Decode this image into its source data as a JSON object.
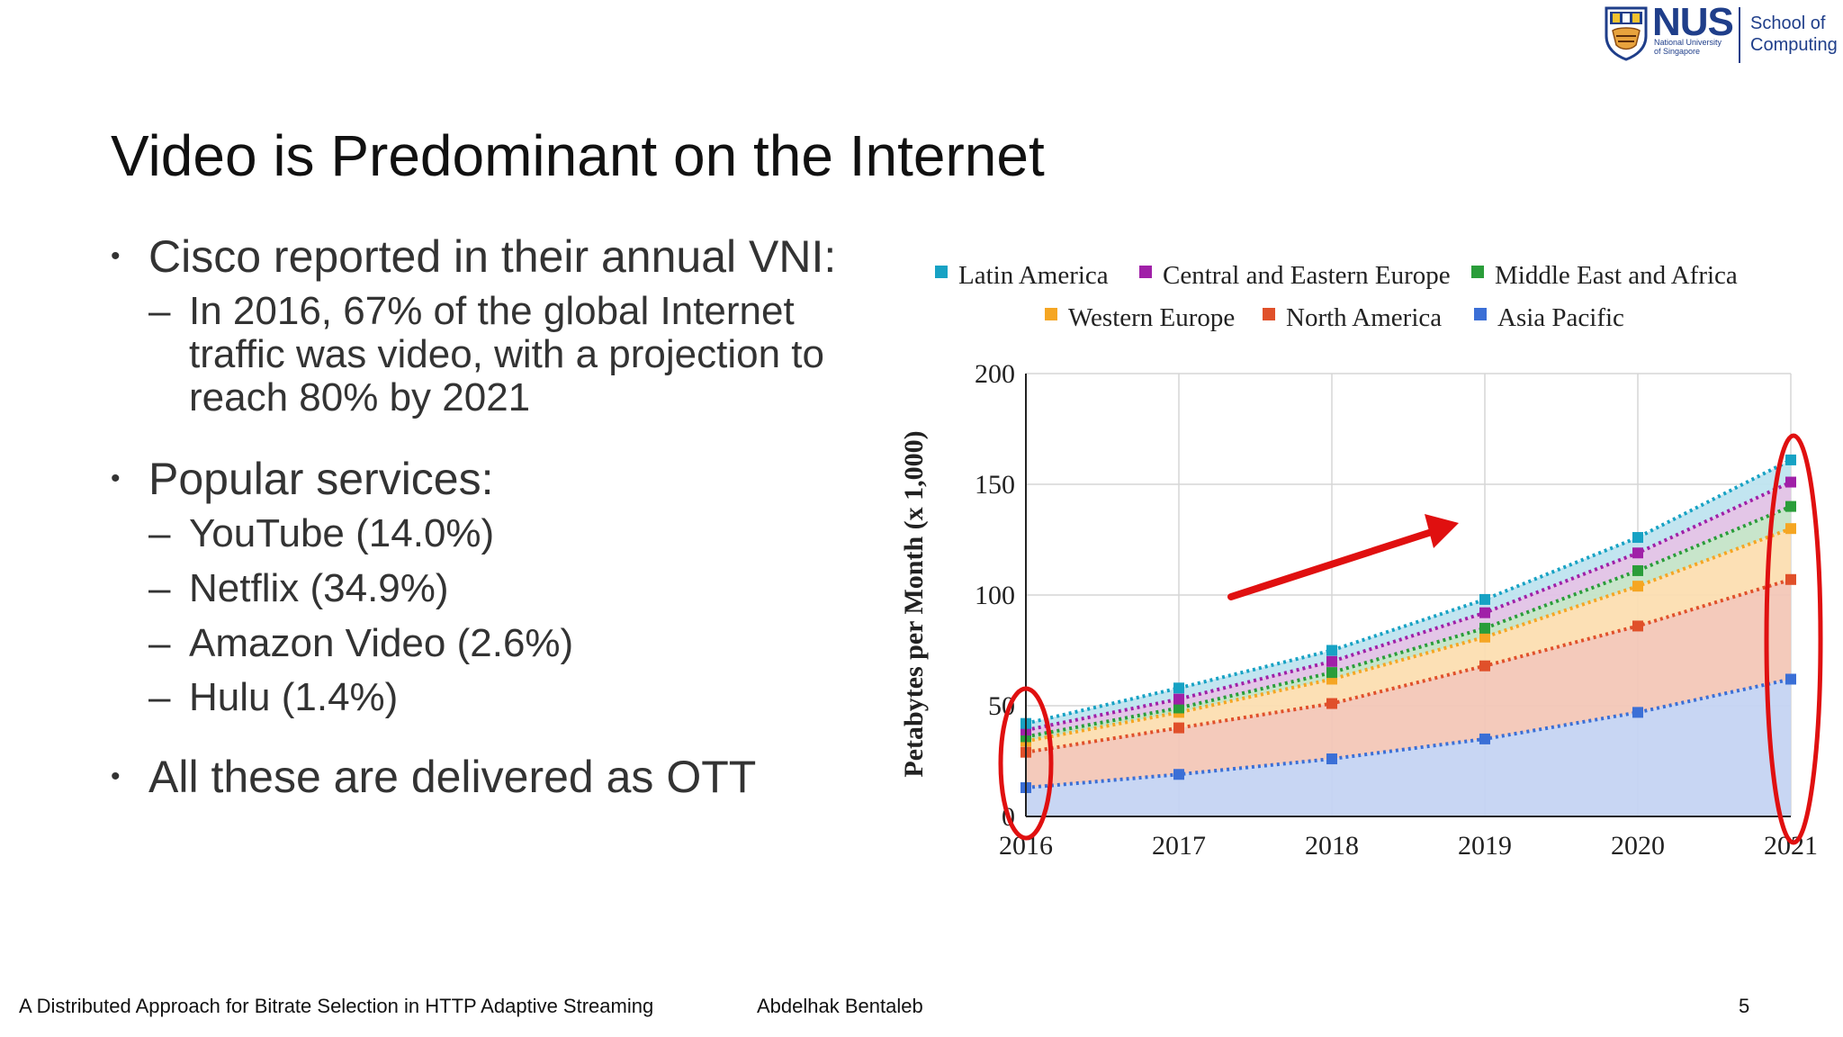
{
  "logo": {
    "name": "NUS",
    "subtitle_line1": "National University",
    "subtitle_line2": "of Singapore",
    "school_line1": "School of",
    "school_line2": "Computing"
  },
  "slide": {
    "title": "Video is Predominant on the Internet",
    "bullets": [
      {
        "text": "Cisco reported in their annual VNI:",
        "sub": [
          {
            "lines": [
              "In 2016, 67% of the global Internet",
              "traffic was video, with a projection to",
              "reach 80% by 2021"
            ]
          }
        ]
      },
      {
        "text": "Popular services:",
        "sub": [
          {
            "lines": [
              "YouTube (14.0%)"
            ]
          },
          {
            "lines": [
              "Netflix (34.9%)"
            ]
          },
          {
            "lines": [
              "Amazon Video (2.6%)"
            ]
          },
          {
            "lines": [
              "Hulu (1.4%)"
            ]
          }
        ]
      },
      {
        "text": "All these are delivered as OTT",
        "sub": []
      }
    ],
    "bullet_symbol": "•",
    "dash_symbol": "–"
  },
  "footer": {
    "title": "A Distributed Approach for Bitrate Selection in HTTP Adaptive Streaming",
    "author": "Abdelhak Bentaleb",
    "page": "5"
  },
  "chart_data": {
    "type": "area",
    "ylabel": "Petabytes per Month (x 1,000)",
    "xlabel": "",
    "x": [
      "2016",
      "2017",
      "2018",
      "2019",
      "2020",
      "2021"
    ],
    "ylim": [
      0,
      200
    ],
    "yticks": [
      0,
      50,
      100,
      150,
      200
    ],
    "grid": true,
    "stacked": true,
    "legend_position": "top",
    "series": [
      {
        "name": "Asia Pacific",
        "color": "#3b6fd6",
        "fill": "#c5d4f2",
        "values": [
          13,
          19,
          26,
          35,
          47,
          62
        ]
      },
      {
        "name": "North America",
        "color": "#e0502a",
        "fill": "#f3c7b7",
        "values": [
          29,
          40,
          51,
          68,
          86,
          107
        ]
      },
      {
        "name": "Western Europe",
        "color": "#f5a623",
        "fill": "#fcdeb1",
        "values": [
          34,
          47,
          62,
          81,
          104,
          130
        ]
      },
      {
        "name": "Middle East and Africa",
        "color": "#2a9d3a",
        "fill": "#c5e4c8",
        "values": [
          36,
          49,
          65,
          85,
          111,
          140
        ]
      },
      {
        "name": "Central and Eastern Europe",
        "color": "#a020a8",
        "fill": "#e2c3e6",
        "values": [
          39,
          53,
          70,
          92,
          119,
          151
        ]
      },
      {
        "name": "Latin America",
        "color": "#17a2c4",
        "fill": "#bfe4ef",
        "values": [
          42,
          58,
          75,
          98,
          126,
          161
        ]
      }
    ],
    "legend_order": [
      "Latin America",
      "Central and Eastern Europe",
      "Middle East and Africa",
      "Western Europe",
      "North America",
      "Asia Pacific"
    ],
    "annotations": [
      "red-ellipse-2016",
      "red-ellipse-2021",
      "red-trend-arrow"
    ]
  }
}
